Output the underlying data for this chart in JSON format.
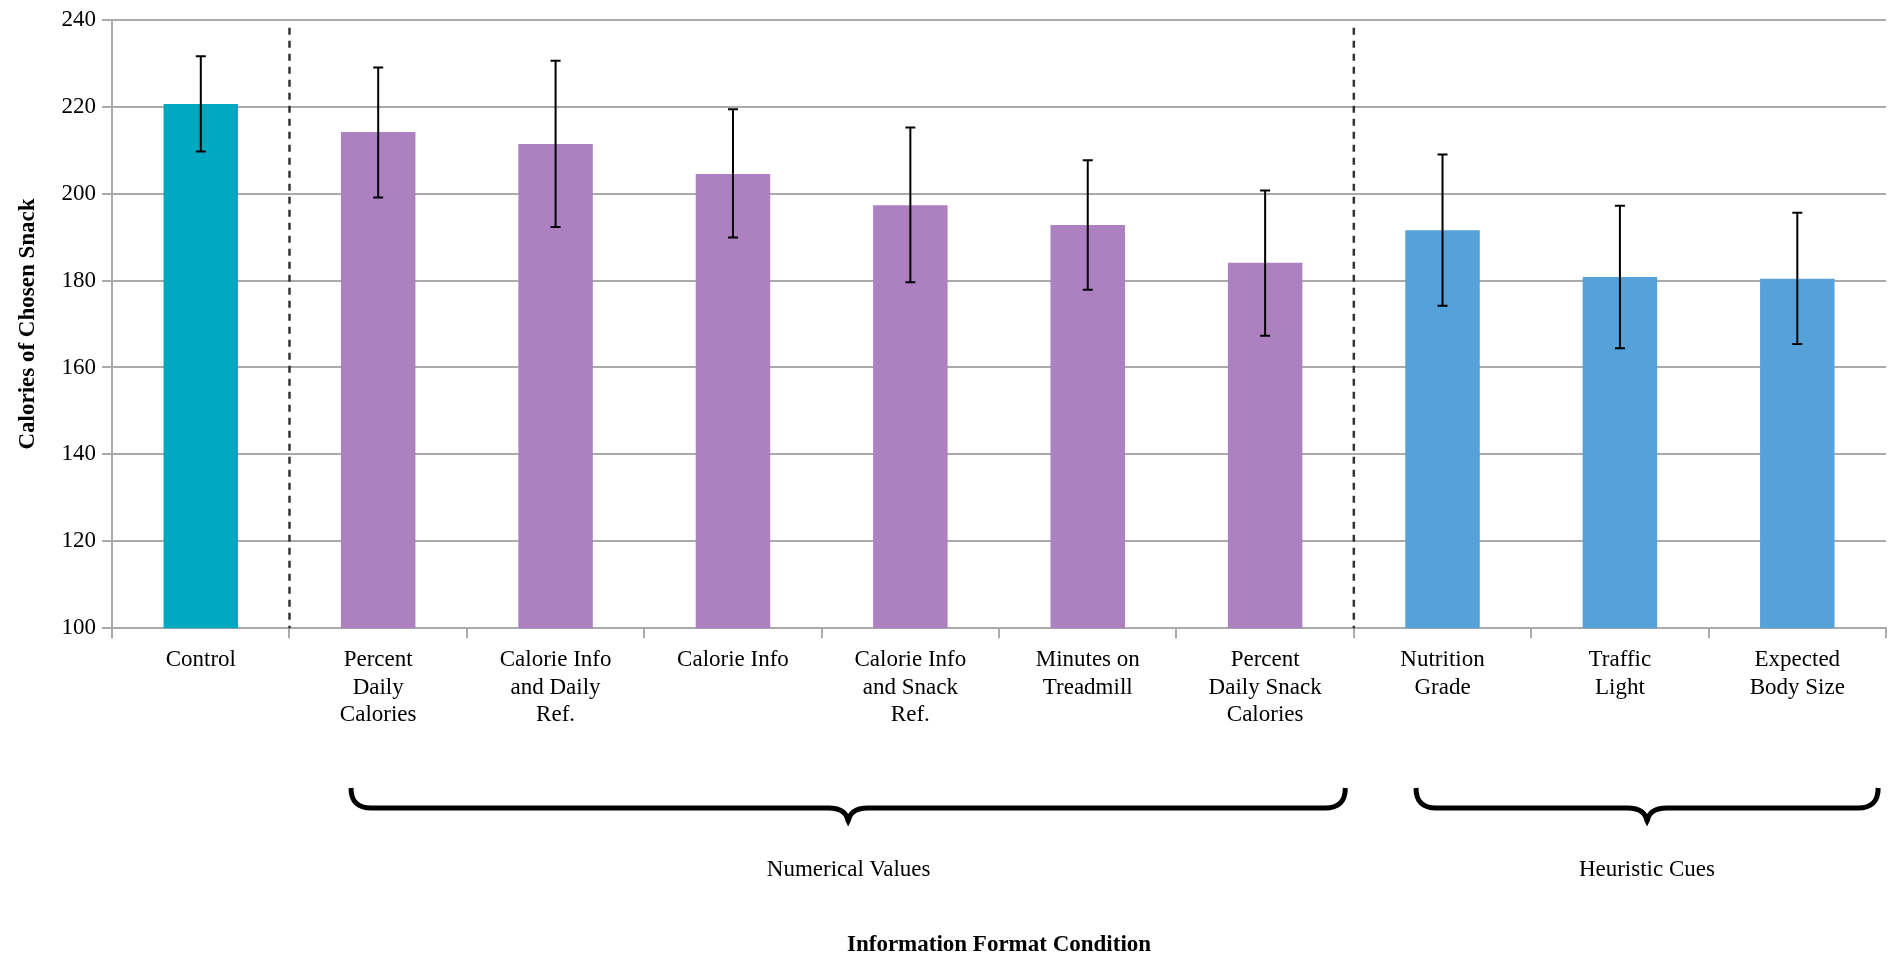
{
  "chart_data": {
    "type": "bar",
    "ylabel": "Calories of Chosen Snack",
    "categories": [
      "Control",
      "Percent Daily Calories",
      "Calorie Info and Daily Ref.",
      "Calorie Info",
      "Calorie Info and Snack Ref.",
      "Minutes on Treadmill",
      "Percent Daily Snack Calories",
      "Nutrition Grade",
      "Traffic Light",
      "Expected Body Size"
    ],
    "values": [
      220.6,
      214.2,
      211.4,
      204.5,
      197.3,
      192.8,
      184.1,
      191.6,
      180.8,
      180.4
    ],
    "colors": [
      "#00a9c0",
      "#ad80c1",
      "#ad80c1",
      "#ad80c1",
      "#ad80c1",
      "#ad80c1",
      "#ad80c1",
      "#54a2d9",
      "#54a2d9",
      "#54a2d9"
    ],
    "errors": [
      [
        209.7,
        231.6
      ],
      [
        199.1,
        229.0
      ],
      [
        192.3,
        230.6
      ],
      [
        189.9,
        219.4
      ],
      [
        179.6,
        215.2
      ],
      [
        177.9,
        207.7
      ],
      [
        167.3,
        200.7
      ],
      [
        174.2,
        209.0
      ],
      [
        164.4,
        197.2
      ],
      [
        165.4,
        195.6
      ]
    ],
    "ylim": [
      100,
      240
    ],
    "yticks": [
      100,
      120,
      140,
      160,
      180,
      200,
      220,
      240
    ],
    "grid": "y",
    "annotations": [
      "Numerical Values",
      "Heuristic Cues",
      "Information Format Condition"
    ]
  }
}
